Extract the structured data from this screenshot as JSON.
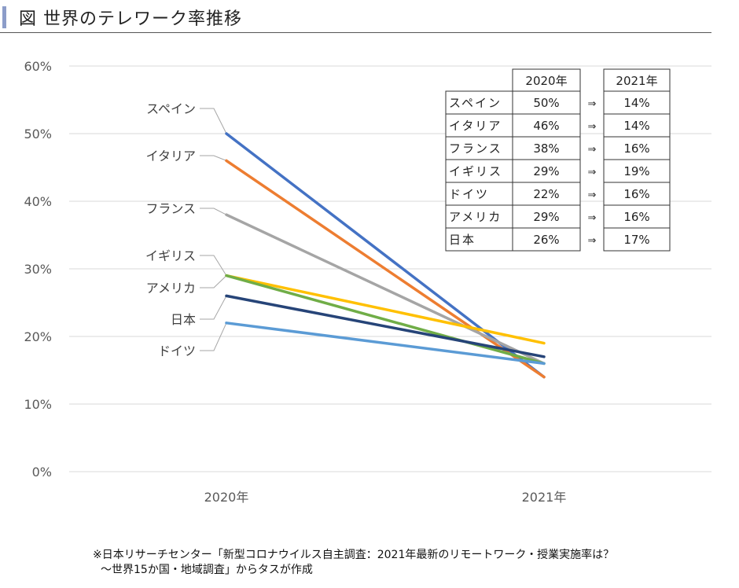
{
  "title": "図  世界のテレワーク率推移",
  "note": {
    "line1": "※日本リサーチセンター「新型コロナウイルス自主調査：2021年最新のリモートワーク・授業実施率は？",
    "line2": "～世界15か国・地域調査」からタスが作成"
  },
  "chart_data": {
    "type": "line",
    "categories": [
      "2020年",
      "2021年"
    ],
    "ylim": [
      0,
      60
    ],
    "yticks": [
      "0%",
      "10%",
      "20%",
      "30%",
      "40%",
      "50%",
      "60%"
    ],
    "grid": true,
    "series": [
      {
        "name": "スペイン",
        "values": [
          50,
          14
        ],
        "color": "#4472C4"
      },
      {
        "name": "イタリア",
        "values": [
          46,
          14
        ],
        "color": "#ED7D31"
      },
      {
        "name": "フランス",
        "values": [
          38,
          16
        ],
        "color": "#A5A5A5"
      },
      {
        "name": "イギリス",
        "values": [
          29,
          19
        ],
        "color": "#FFC000"
      },
      {
        "name": "アメリカ",
        "values": [
          29,
          16
        ],
        "color": "#70AD47"
      },
      {
        "name": "日本",
        "values": [
          26,
          17
        ],
        "color": "#264478"
      },
      {
        "name": "ドイツ",
        "values": [
          22,
          16
        ],
        "color": "#5B9BD5"
      }
    ]
  },
  "table": {
    "headers": [
      "2020年",
      "2021年"
    ],
    "arrow": "⇒",
    "rows": [
      [
        "スペイン",
        "50%",
        "14%"
      ],
      [
        "イタリア",
        "46%",
        "14%"
      ],
      [
        "フランス",
        "38%",
        "16%"
      ],
      [
        "イギリス",
        "29%",
        "19%"
      ],
      [
        "ドイツ",
        "22%",
        "16%"
      ],
      [
        "アメリカ",
        "29%",
        "16%"
      ],
      [
        "日本",
        "26%",
        "17%"
      ]
    ]
  }
}
